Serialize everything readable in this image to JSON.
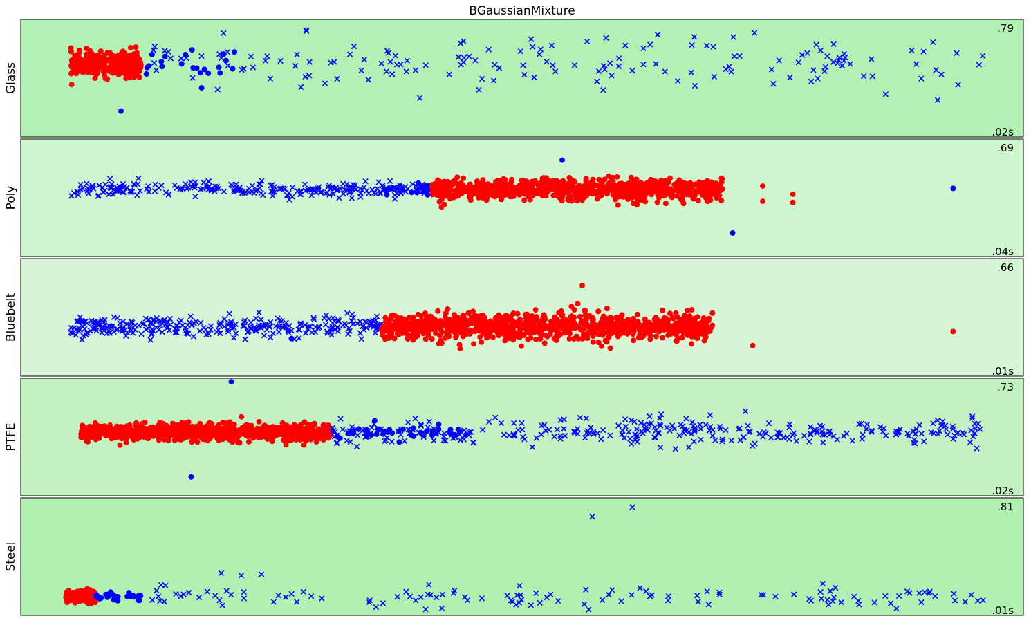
{
  "chart_data": {
    "type": "scatter",
    "title": "BGaussianMixture",
    "marker_legend": {
      "dot": "circle marker",
      "cross": "x marker"
    },
    "colors": {
      "cluster_red": "#ff0000",
      "cluster_blue": "#0000ff",
      "cross_blue": "#0000ff"
    },
    "grid": false,
    "axes_ticks": false,
    "x_range": [
      0,
      1
    ],
    "panels": [
      {
        "label": "Glass",
        "score": ".79",
        "time": ".02s",
        "background": "#b3f0b3",
        "y_center": 0.62,
        "groups": [
          {
            "color": "#ff0000",
            "marker": "dot",
            "x_range": [
              0.05,
              0.12
            ],
            "y_spread": 0.05,
            "count": 320
          },
          {
            "color": "#0000ff",
            "marker": "dot",
            "x_range": [
              0.12,
              0.22
            ],
            "y_spread": 0.07,
            "count": 22
          },
          {
            "color": "#0000ff",
            "marker": "cross",
            "x_range": [
              0.13,
              0.96
            ],
            "y_spread": 0.12,
            "count": 160
          }
        ],
        "outliers": [
          {
            "color": "#0000ff",
            "marker": "dot",
            "x": 0.1,
            "y": 0.22
          }
        ]
      },
      {
        "label": "Poly",
        "score": ".69",
        "time": ".04s",
        "background": "#cff5cf",
        "y_center": 0.57,
        "groups": [
          {
            "color": "#0000ff",
            "marker": "cross",
            "x_range": [
              0.05,
              0.42
            ],
            "y_spread": 0.03,
            "count": 260
          },
          {
            "color": "#0000ff",
            "marker": "dot",
            "x_range": [
              0.36,
              0.42
            ],
            "y_spread": 0.025,
            "count": 18
          },
          {
            "color": "#ff0000",
            "marker": "dot",
            "x_range": [
              0.41,
              0.7
            ],
            "y_spread": 0.045,
            "count": 800
          },
          {
            "color": "#ff0000",
            "marker": "cross",
            "x_range": [
              0.41,
              0.46
            ],
            "y_spread": 0.02,
            "count": 6
          }
        ],
        "outliers": [
          {
            "color": "#0000ff",
            "marker": "dot",
            "x": 0.54,
            "y": 0.82
          },
          {
            "color": "#0000ff",
            "marker": "dot",
            "x": 0.93,
            "y": 0.58
          },
          {
            "color": "#0000ff",
            "marker": "dot",
            "x": 0.71,
            "y": 0.2
          },
          {
            "color": "#ff0000",
            "marker": "dot",
            "x": 0.74,
            "y": 0.6
          },
          {
            "color": "#ff0000",
            "marker": "dot",
            "x": 0.77,
            "y": 0.53
          },
          {
            "color": "#ff0000",
            "marker": "dot",
            "x": 0.77,
            "y": 0.46
          },
          {
            "color": "#ff0000",
            "marker": "dot",
            "x": 0.74,
            "y": 0.47
          }
        ]
      },
      {
        "label": "Bluebelt",
        "score": ".66",
        "time": ".01s",
        "background": "#d5f5d5",
        "y_center": 0.42,
        "groups": [
          {
            "color": "#0000ff",
            "marker": "cross",
            "x_range": [
              0.05,
              0.36
            ],
            "y_spread": 0.045,
            "count": 300
          },
          {
            "color": "#ff0000",
            "marker": "dot",
            "x_range": [
              0.36,
              0.69
            ],
            "y_spread": 0.055,
            "count": 1000
          },
          {
            "color": "#ff0000",
            "marker": "cross",
            "x_range": [
              0.38,
              0.48
            ],
            "y_spread": 0.05,
            "count": 5
          }
        ],
        "outliers": [
          {
            "color": "#ff0000",
            "marker": "dot",
            "x": 0.56,
            "y": 0.77
          },
          {
            "color": "#ff0000",
            "marker": "dot",
            "x": 0.64,
            "y": 0.56
          },
          {
            "color": "#ff0000",
            "marker": "dot",
            "x": 0.73,
            "y": 0.26
          },
          {
            "color": "#ff0000",
            "marker": "dot",
            "x": 0.93,
            "y": 0.38
          },
          {
            "color": "#0000ff",
            "marker": "dot",
            "x": 0.27,
            "y": 0.32
          },
          {
            "color": "#0000ff",
            "marker": "cross",
            "x": 0.05,
            "y": 0.37
          }
        ]
      },
      {
        "label": "PTFE",
        "score": ".73",
        "time": ".02s",
        "background": "#c2f2c2",
        "y_center": 0.54,
        "groups": [
          {
            "color": "#ff0000",
            "marker": "dot",
            "x_range": [
              0.06,
              0.31
            ],
            "y_spread": 0.035,
            "count": 900
          },
          {
            "color": "#0000ff",
            "marker": "dot",
            "x_range": [
              0.31,
              0.45
            ],
            "y_spread": 0.03,
            "count": 40
          },
          {
            "color": "#0000ff",
            "marker": "cross",
            "x_range": [
              0.31,
              0.96
            ],
            "y_spread": 0.06,
            "count": 320
          }
        ],
        "outliers": [
          {
            "color": "#0000ff",
            "marker": "dot",
            "x": 0.17,
            "y": 0.16
          },
          {
            "color": "#0000ff",
            "marker": "dot",
            "x": 0.21,
            "y": 0.97
          }
        ]
      },
      {
        "label": "Steel",
        "score": ".81",
        "time": ".01s",
        "background": "#b0f0b0",
        "y_center": 0.16,
        "groups": [
          {
            "color": "#ff0000",
            "marker": "dot",
            "x_range": [
              0.045,
              0.075
            ],
            "y_spread": 0.025,
            "count": 160
          },
          {
            "color": "#0000ff",
            "marker": "dot",
            "x_range": [
              0.075,
              0.12
            ],
            "y_spread": 0.015,
            "count": 30
          },
          {
            "color": "#0000ff",
            "marker": "cross",
            "x_range": [
              0.12,
              0.96
            ],
            "y_spread": 0.04,
            "count": 120
          }
        ],
        "outliers": [
          {
            "color": "#0000ff",
            "marker": "cross",
            "x": 0.61,
            "y": 0.92
          },
          {
            "color": "#0000ff",
            "marker": "cross",
            "x": 0.57,
            "y": 0.84
          },
          {
            "color": "#0000ff",
            "marker": "cross",
            "x": 0.2,
            "y": 0.36
          },
          {
            "color": "#0000ff",
            "marker": "cross",
            "x": 0.22,
            "y": 0.34
          },
          {
            "color": "#0000ff",
            "marker": "cross",
            "x": 0.24,
            "y": 0.35
          },
          {
            "color": "#0000ff",
            "marker": "cross",
            "x": 0.14,
            "y": 0.26
          },
          {
            "color": "#0000ff",
            "marker": "cross",
            "x": 0.42,
            "y": 0.06
          }
        ]
      }
    ]
  }
}
